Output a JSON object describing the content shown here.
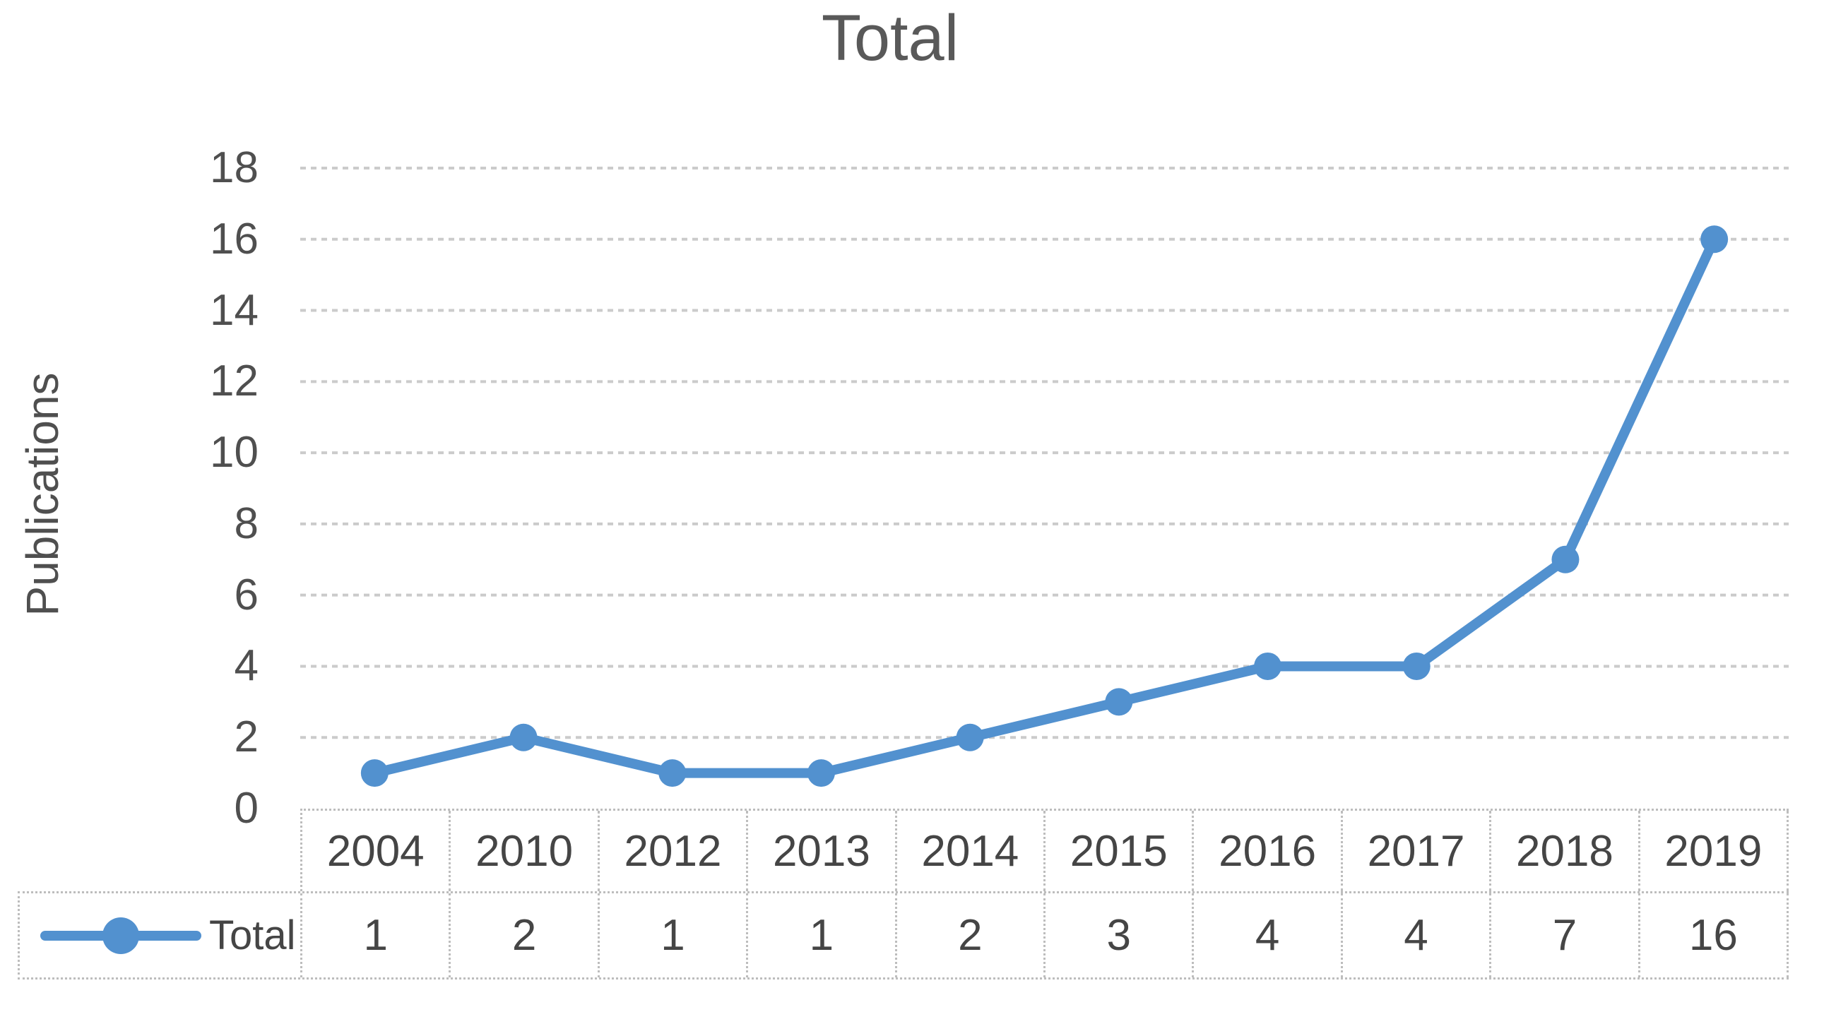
{
  "chart": {
    "title": "Total",
    "ylabel": "Publications",
    "legend_label": "Total"
  },
  "chart_data": {
    "type": "line",
    "title": "Total",
    "xlabel": "",
    "ylabel": "Publications",
    "categories": [
      "2004",
      "2010",
      "2012",
      "2013",
      "2014",
      "2015",
      "2016",
      "2017",
      "2018",
      "2019"
    ],
    "series": [
      {
        "name": "Total",
        "values": [
          1,
          2,
          1,
          1,
          2,
          3,
          4,
          4,
          7,
          16
        ]
      }
    ],
    "ylim": [
      0,
      18
    ],
    "ytick_step": 2,
    "grid": true,
    "legend_position": "bottom-table-left",
    "data_table_shown": true,
    "colors": {
      "series": "#5291CF",
      "gridline": "#cbcbcb",
      "table_border": "#bdbdbd",
      "title_text": "#595959",
      "axis_text": "#4f4f4f",
      "table_text": "#454545"
    }
  }
}
